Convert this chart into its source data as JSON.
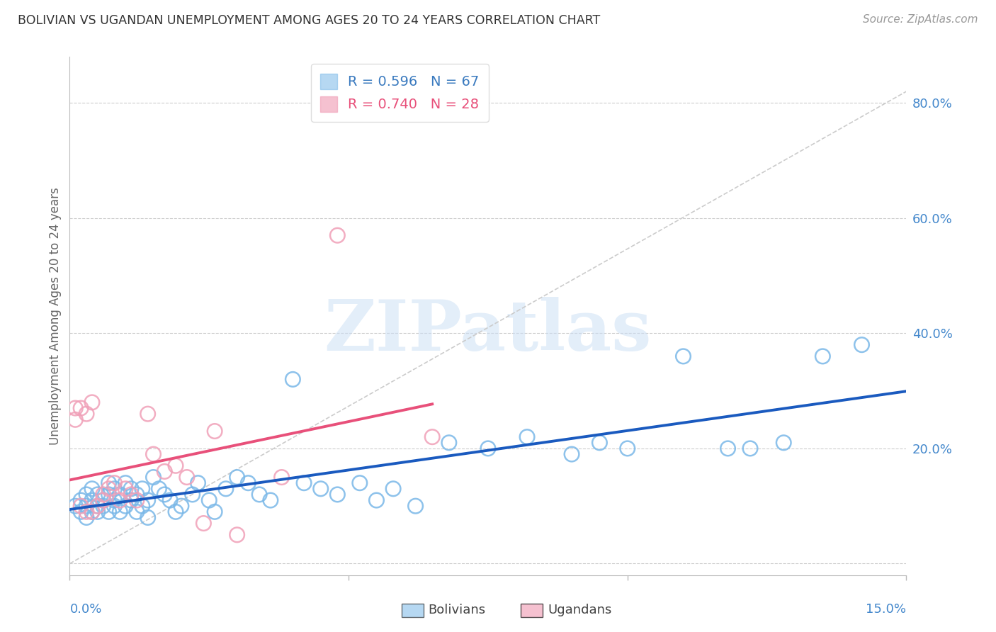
{
  "title": "BOLIVIAN VS UGANDAN UNEMPLOYMENT AMONG AGES 20 TO 24 YEARS CORRELATION CHART",
  "source": "Source: ZipAtlas.com",
  "ylabel": "Unemployment Among Ages 20 to 24 years",
  "xlim": [
    0.0,
    0.15
  ],
  "ylim": [
    -0.02,
    0.88
  ],
  "yticks": [
    0.0,
    0.2,
    0.4,
    0.6,
    0.8
  ],
  "ytick_labels": [
    "",
    "20.0%",
    "40.0%",
    "60.0%",
    "80.0%"
  ],
  "xticks": [
    0.0,
    0.05,
    0.1,
    0.15
  ],
  "gridline_color": "#cccccc",
  "background_color": "#ffffff",
  "bolivian_color": "#7ab8e8",
  "ugandan_color": "#f0a0b8",
  "bolivian_line_color": "#1a5abf",
  "ugandan_line_color": "#e8507a",
  "diagonal_line_color": "#cccccc",
  "legend_R_bolivian": "R = 0.596",
  "legend_N_bolivian": "N = 67",
  "legend_R_ugandan": "R = 0.740",
  "legend_N_ugandan": "N = 28",
  "legend_label_bolivian": "Bolivians",
  "legend_label_ugandan": "Ugandans",
  "watermark": "ZIPatlas",
  "bolivian_x": [
    0.001,
    0.002,
    0.002,
    0.003,
    0.003,
    0.003,
    0.004,
    0.004,
    0.004,
    0.005,
    0.005,
    0.005,
    0.006,
    0.006,
    0.007,
    0.007,
    0.007,
    0.008,
    0.008,
    0.008,
    0.009,
    0.009,
    0.01,
    0.01,
    0.011,
    0.011,
    0.012,
    0.012,
    0.013,
    0.013,
    0.014,
    0.014,
    0.015,
    0.016,
    0.017,
    0.018,
    0.019,
    0.02,
    0.022,
    0.023,
    0.025,
    0.026,
    0.028,
    0.03,
    0.032,
    0.034,
    0.036,
    0.04,
    0.042,
    0.045,
    0.048,
    0.052,
    0.055,
    0.058,
    0.062,
    0.068,
    0.075,
    0.082,
    0.09,
    0.095,
    0.1,
    0.11,
    0.118,
    0.122,
    0.128,
    0.135,
    0.142
  ],
  "bolivian_y": [
    0.1,
    0.09,
    0.11,
    0.08,
    0.1,
    0.12,
    0.09,
    0.11,
    0.13,
    0.1,
    0.09,
    0.12,
    0.11,
    0.1,
    0.12,
    0.09,
    0.14,
    0.1,
    0.13,
    0.11,
    0.09,
    0.12,
    0.1,
    0.14,
    0.13,
    0.11,
    0.12,
    0.09,
    0.13,
    0.1,
    0.11,
    0.08,
    0.15,
    0.13,
    0.12,
    0.11,
    0.09,
    0.1,
    0.12,
    0.14,
    0.11,
    0.09,
    0.13,
    0.15,
    0.14,
    0.12,
    0.11,
    0.32,
    0.14,
    0.13,
    0.12,
    0.14,
    0.11,
    0.13,
    0.1,
    0.21,
    0.2,
    0.22,
    0.19,
    0.21,
    0.2,
    0.36,
    0.2,
    0.2,
    0.21,
    0.36,
    0.38
  ],
  "ugandan_x": [
    0.001,
    0.001,
    0.002,
    0.002,
    0.003,
    0.003,
    0.004,
    0.004,
    0.005,
    0.006,
    0.006,
    0.007,
    0.008,
    0.009,
    0.01,
    0.011,
    0.012,
    0.014,
    0.015,
    0.017,
    0.019,
    0.021,
    0.024,
    0.026,
    0.03,
    0.038,
    0.048,
    0.065
  ],
  "ugandan_y": [
    0.25,
    0.27,
    0.27,
    0.1,
    0.26,
    0.09,
    0.28,
    0.09,
    0.1,
    0.11,
    0.12,
    0.13,
    0.14,
    0.11,
    0.13,
    0.12,
    0.11,
    0.26,
    0.19,
    0.16,
    0.17,
    0.15,
    0.07,
    0.23,
    0.05,
    0.15,
    0.57,
    0.22
  ]
}
